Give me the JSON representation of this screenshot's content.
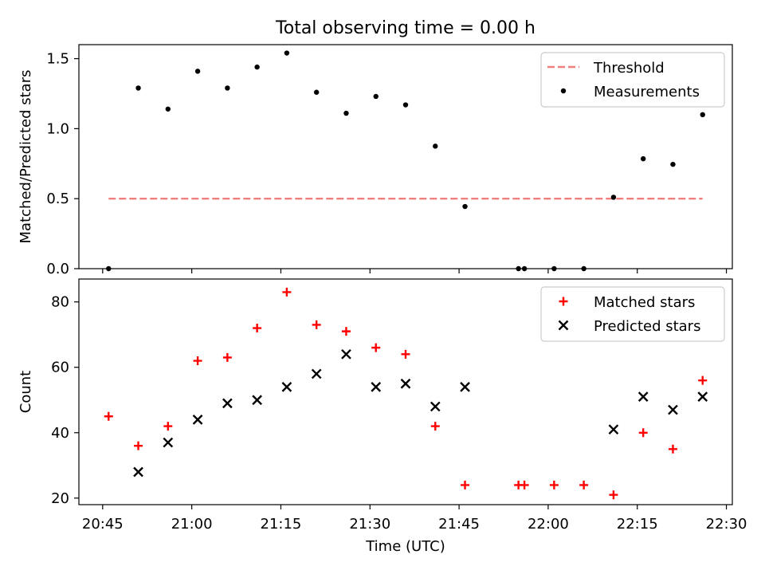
{
  "title": "Total observing time = 0.00 h",
  "xlabel": "Time (UTC)",
  "colors": {
    "threshold": "#f08080",
    "measurement": "#000000",
    "matched": "#ff0000",
    "predicted": "#000000"
  },
  "chart_data": [
    {
      "type": "scatter",
      "panel": "top",
      "title": "Total observing time = 0.00 h",
      "xlabel": "",
      "ylabel": "Matched/Predicted stars",
      "xlim": [
        "20:41",
        "22:31"
      ],
      "ylim": [
        0,
        1.6
      ],
      "xticks": [
        "20:45",
        "21:00",
        "21:15",
        "21:30",
        "21:45",
        "22:00",
        "22:15",
        "22:30"
      ],
      "yticks": [
        "0.0",
        "0.5",
        "1.0",
        "1.5"
      ],
      "legend": "upper right",
      "series": [
        {
          "name": "Threshold",
          "kind": "dashed-line",
          "x": [
            "20:46",
            "22:26"
          ],
          "y": [
            0.5,
            0.5
          ]
        },
        {
          "name": "Measurements",
          "kind": "points",
          "x": [
            "20:46",
            "20:51",
            "20:56",
            "21:01",
            "21:06",
            "21:11",
            "21:16",
            "21:21",
            "21:26",
            "21:31",
            "21:36",
            "21:41",
            "21:46",
            "21:55",
            "21:56",
            "22:01",
            "22:06",
            "22:11",
            "22:16",
            "22:21",
            "22:26"
          ],
          "y": [
            0.0,
            1.29,
            1.14,
            1.41,
            1.29,
            1.44,
            1.54,
            1.26,
            1.11,
            1.23,
            1.17,
            0.875,
            0.444,
            0.0,
            0.0,
            0.0,
            0.0,
            0.51,
            0.785,
            0.745,
            1.1
          ]
        }
      ]
    },
    {
      "type": "scatter",
      "panel": "bottom",
      "title": "",
      "xlabel": "Time (UTC)",
      "ylabel": "Count",
      "xlim": [
        "20:41",
        "22:31"
      ],
      "ylim": [
        18,
        87
      ],
      "xticks": [
        "20:45",
        "21:00",
        "21:15",
        "21:30",
        "21:45",
        "22:00",
        "22:15",
        "22:30"
      ],
      "yticks": [
        "20",
        "40",
        "60",
        "80"
      ],
      "legend": "upper right",
      "series": [
        {
          "name": "Matched stars",
          "marker": "+",
          "x": [
            "20:46",
            "20:51",
            "20:56",
            "21:01",
            "21:06",
            "21:11",
            "21:16",
            "21:21",
            "21:26",
            "21:31",
            "21:36",
            "21:41",
            "21:46",
            "21:55",
            "21:56",
            "22:01",
            "22:06",
            "22:11",
            "22:16",
            "22:21",
            "22:26"
          ],
          "y": [
            45,
            36,
            42,
            62,
            63,
            72,
            83,
            73,
            71,
            66,
            64,
            42,
            24,
            24,
            24,
            24,
            24,
            21,
            40,
            35,
            56
          ]
        },
        {
          "name": "Predicted stars",
          "marker": "x",
          "x": [
            "20:51",
            "20:56",
            "21:01",
            "21:06",
            "21:11",
            "21:16",
            "21:21",
            "21:26",
            "21:31",
            "21:36",
            "21:41",
            "21:46",
            "22:11",
            "22:16",
            "22:21",
            "22:26"
          ],
          "y": [
            28,
            37,
            44,
            49,
            50,
            54,
            58,
            64,
            54,
            55,
            48,
            54,
            41,
            51,
            47,
            51
          ]
        }
      ]
    }
  ]
}
